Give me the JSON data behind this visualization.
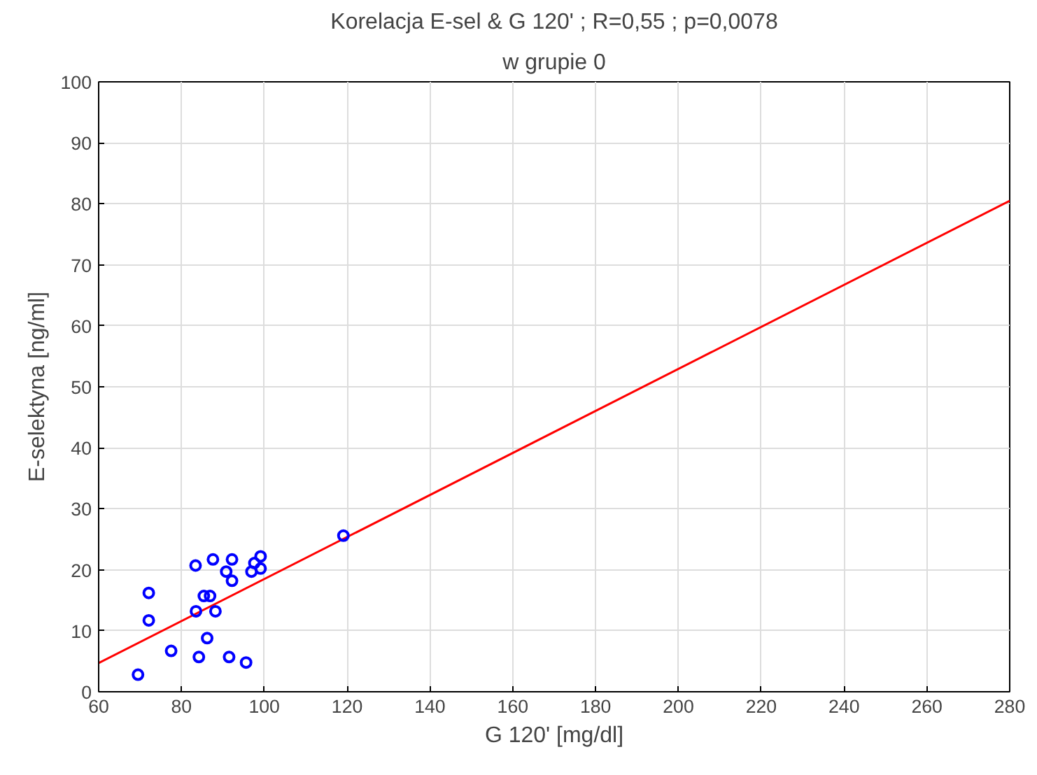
{
  "chart_data": {
    "type": "scatter",
    "title": "Korelacja E-sel & G 120' ; R=0,55 ; p=0,0078",
    "subtitle": "w grupie 0",
    "xlabel": "G 120' [mg/dl]",
    "ylabel": "E-selektyna [ng/ml]",
    "series": [
      {
        "color": "#0000ff",
        "marker": "circle",
        "x": [
          69.5,
          72.1,
          72.1,
          77.5,
          83.4,
          83.5,
          84.2,
          85.4,
          86.9,
          86.2,
          87.6,
          88.2,
          90.8,
          91.5,
          92.2,
          92.2,
          95.6,
          96.9,
          97.6,
          99.1,
          99.1,
          119.1
        ],
        "values": [
          2.8,
          16.2,
          11.7,
          6.7,
          20.7,
          13.2,
          5.7,
          15.7,
          15.7,
          8.8,
          21.7,
          13.2,
          19.7,
          5.7,
          21.7,
          18.2,
          4.8,
          19.7,
          21.1,
          22.2,
          20.2,
          25.6
        ]
      },
      {
        "type": "line",
        "color": "#ff0000",
        "x": [
          60,
          280
        ],
        "values": [
          4.7,
          80.5
        ]
      }
    ],
    "xlim": [
      60,
      280
    ],
    "xticks": [
      60,
      80,
      100,
      120,
      140,
      160,
      180,
      200,
      220,
      240,
      260,
      280
    ],
    "ylim": [
      0,
      100
    ],
    "yticks": [
      0,
      10,
      20,
      30,
      40,
      50,
      60,
      70,
      80,
      90,
      100
    ],
    "grid": true
  }
}
